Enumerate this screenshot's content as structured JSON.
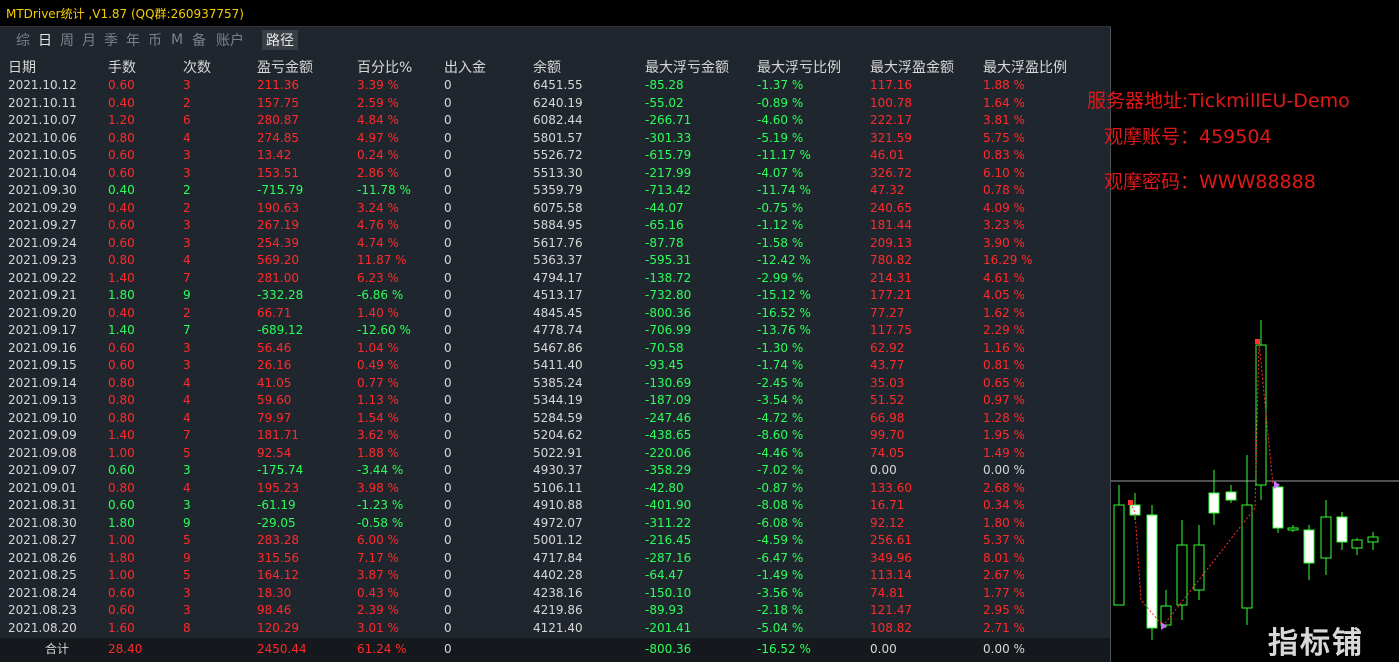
{
  "window": {
    "title": "MTDriver统计 ,V1.87 (QQ群:260937757)"
  },
  "tabs": [
    {
      "label": "综",
      "active": false
    },
    {
      "label": "日",
      "active": true
    },
    {
      "label": "周",
      "active": false
    },
    {
      "label": "月",
      "active": false
    },
    {
      "label": "季",
      "active": false
    },
    {
      "label": "年",
      "active": false
    },
    {
      "label": "币",
      "active": false
    },
    {
      "label": "M",
      "active": false
    },
    {
      "label": "备",
      "active": false
    },
    {
      "label": "账户",
      "active": false
    }
  ],
  "route_label": "路径",
  "columns": [
    "日期",
    "手数",
    "次数",
    "盈亏金额",
    "百分比%",
    "出入金",
    "余额",
    "最大浮亏金额",
    "最大浮亏比例",
    "最大浮盈金额",
    "最大浮盈比例"
  ],
  "rows": [
    {
      "date": "2021.10.12",
      "lots": "0.60",
      "count": "3",
      "pnl": "211.36",
      "pct": "3.39 %",
      "io": "0",
      "bal": "6451.55",
      "mfl": "-85.28",
      "mflp": "-1.37 %",
      "mfp": "117.16",
      "mfpp": "1.88 %",
      "sign": "pos"
    },
    {
      "date": "2021.10.11",
      "lots": "0.40",
      "count": "2",
      "pnl": "157.75",
      "pct": "2.59 %",
      "io": "0",
      "bal": "6240.19",
      "mfl": "-55.02",
      "mflp": "-0.89 %",
      "mfp": "100.78",
      "mfpp": "1.64 %",
      "sign": "pos"
    },
    {
      "date": "2021.10.07",
      "lots": "1.20",
      "count": "6",
      "pnl": "280.87",
      "pct": "4.84 %",
      "io": "0",
      "bal": "6082.44",
      "mfl": "-266.71",
      "mflp": "-4.60 %",
      "mfp": "222.17",
      "mfpp": "3.81 %",
      "sign": "pos"
    },
    {
      "date": "2021.10.06",
      "lots": "0.80",
      "count": "4",
      "pnl": "274.85",
      "pct": "4.97 %",
      "io": "0",
      "bal": "5801.57",
      "mfl": "-301.33",
      "mflp": "-5.19 %",
      "mfp": "321.59",
      "mfpp": "5.75 %",
      "sign": "pos"
    },
    {
      "date": "2021.10.05",
      "lots": "0.60",
      "count": "3",
      "pnl": "13.42",
      "pct": "0.24 %",
      "io": "0",
      "bal": "5526.72",
      "mfl": "-615.79",
      "mflp": "-11.17 %",
      "mfp": "46.01",
      "mfpp": "0.83 %",
      "sign": "pos"
    },
    {
      "date": "2021.10.04",
      "lots": "0.60",
      "count": "3",
      "pnl": "153.51",
      "pct": "2.86 %",
      "io": "0",
      "bal": "5513.30",
      "mfl": "-217.99",
      "mflp": "-4.07 %",
      "mfp": "326.72",
      "mfpp": "6.10 %",
      "sign": "pos"
    },
    {
      "date": "2021.09.30",
      "lots": "0.40",
      "count": "2",
      "pnl": "-715.79",
      "pct": "-11.78 %",
      "io": "0",
      "bal": "5359.79",
      "mfl": "-713.42",
      "mflp": "-11.74 %",
      "mfp": "47.32",
      "mfpp": "0.78 %",
      "sign": "neg"
    },
    {
      "date": "2021.09.29",
      "lots": "0.40",
      "count": "2",
      "pnl": "190.63",
      "pct": "3.24 %",
      "io": "0",
      "bal": "6075.58",
      "mfl": "-44.07",
      "mflp": "-0.75 %",
      "mfp": "240.65",
      "mfpp": "4.09 %",
      "sign": "pos"
    },
    {
      "date": "2021.09.27",
      "lots": "0.60",
      "count": "3",
      "pnl": "267.19",
      "pct": "4.76 %",
      "io": "0",
      "bal": "5884.95",
      "mfl": "-65.16",
      "mflp": "-1.12 %",
      "mfp": "181.44",
      "mfpp": "3.23 %",
      "sign": "pos"
    },
    {
      "date": "2021.09.24",
      "lots": "0.60",
      "count": "3",
      "pnl": "254.39",
      "pct": "4.74 %",
      "io": "0",
      "bal": "5617.76",
      "mfl": "-87.78",
      "mflp": "-1.58 %",
      "mfp": "209.13",
      "mfpp": "3.90 %",
      "sign": "pos"
    },
    {
      "date": "2021.09.23",
      "lots": "0.80",
      "count": "4",
      "pnl": "569.20",
      "pct": "11.87 %",
      "io": "0",
      "bal": "5363.37",
      "mfl": "-595.31",
      "mflp": "-12.42 %",
      "mfp": "780.82",
      "mfpp": "16.29 %",
      "sign": "pos"
    },
    {
      "date": "2021.09.22",
      "lots": "1.40",
      "count": "7",
      "pnl": "281.00",
      "pct": "6.23 %",
      "io": "0",
      "bal": "4794.17",
      "mfl": "-138.72",
      "mflp": "-2.99 %",
      "mfp": "214.31",
      "mfpp": "4.61 %",
      "sign": "pos"
    },
    {
      "date": "2021.09.21",
      "lots": "1.80",
      "count": "9",
      "pnl": "-332.28",
      "pct": "-6.86 %",
      "io": "0",
      "bal": "4513.17",
      "mfl": "-732.80",
      "mflp": "-15.12 %",
      "mfp": "177.21",
      "mfpp": "4.05 %",
      "sign": "neg"
    },
    {
      "date": "2021.09.20",
      "lots": "0.40",
      "count": "2",
      "pnl": "66.71",
      "pct": "1.40 %",
      "io": "0",
      "bal": "4845.45",
      "mfl": "-800.36",
      "mflp": "-16.52 %",
      "mfp": "77.27",
      "mfpp": "1.62 %",
      "sign": "pos"
    },
    {
      "date": "2021.09.17",
      "lots": "1.40",
      "count": "7",
      "pnl": "-689.12",
      "pct": "-12.60 %",
      "io": "0",
      "bal": "4778.74",
      "mfl": "-706.99",
      "mflp": "-13.76 %",
      "mfp": "117.75",
      "mfpp": "2.29 %",
      "sign": "neg"
    },
    {
      "date": "2021.09.16",
      "lots": "0.60",
      "count": "3",
      "pnl": "56.46",
      "pct": "1.04 %",
      "io": "0",
      "bal": "5467.86",
      "mfl": "-70.58",
      "mflp": "-1.30 %",
      "mfp": "62.92",
      "mfpp": "1.16 %",
      "sign": "pos"
    },
    {
      "date": "2021.09.15",
      "lots": "0.60",
      "count": "3",
      "pnl": "26.16",
      "pct": "0.49 %",
      "io": "0",
      "bal": "5411.40",
      "mfl": "-93.45",
      "mflp": "-1.74 %",
      "mfp": "43.77",
      "mfpp": "0.81 %",
      "sign": "pos"
    },
    {
      "date": "2021.09.14",
      "lots": "0.80",
      "count": "4",
      "pnl": "41.05",
      "pct": "0.77 %",
      "io": "0",
      "bal": "5385.24",
      "mfl": "-130.69",
      "mflp": "-2.45 %",
      "mfp": "35.03",
      "mfpp": "0.65 %",
      "sign": "pos"
    },
    {
      "date": "2021.09.13",
      "lots": "0.80",
      "count": "4",
      "pnl": "59.60",
      "pct": "1.13 %",
      "io": "0",
      "bal": "5344.19",
      "mfl": "-187.09",
      "mflp": "-3.54 %",
      "mfp": "51.52",
      "mfpp": "0.97 %",
      "sign": "pos"
    },
    {
      "date": "2021.09.10",
      "lots": "0.80",
      "count": "4",
      "pnl": "79.97",
      "pct": "1.54 %",
      "io": "0",
      "bal": "5284.59",
      "mfl": "-247.46",
      "mflp": "-4.72 %",
      "mfp": "66.98",
      "mfpp": "1.28 %",
      "sign": "pos"
    },
    {
      "date": "2021.09.09",
      "lots": "1.40",
      "count": "7",
      "pnl": "181.71",
      "pct": "3.62 %",
      "io": "0",
      "bal": "5204.62",
      "mfl": "-438.65",
      "mflp": "-8.60 %",
      "mfp": "99.70",
      "mfpp": "1.95 %",
      "sign": "pos"
    },
    {
      "date": "2021.09.08",
      "lots": "1.00",
      "count": "5",
      "pnl": "92.54",
      "pct": "1.88 %",
      "io": "0",
      "bal": "5022.91",
      "mfl": "-220.06",
      "mflp": "-4.46 %",
      "mfp": "74.05",
      "mfpp": "1.49 %",
      "sign": "pos"
    },
    {
      "date": "2021.09.07",
      "lots": "0.60",
      "count": "3",
      "pnl": "-175.74",
      "pct": "-3.44 %",
      "io": "0",
      "bal": "4930.37",
      "mfl": "-358.29",
      "mflp": "-7.02 %",
      "mfp": "0.00",
      "mfpp": "0.00 %",
      "sign": "neg"
    },
    {
      "date": "2021.09.01",
      "lots": "0.80",
      "count": "4",
      "pnl": "195.23",
      "pct": "3.98 %",
      "io": "0",
      "bal": "5106.11",
      "mfl": "-42.80",
      "mflp": "-0.87 %",
      "mfp": "133.60",
      "mfpp": "2.68 %",
      "sign": "pos"
    },
    {
      "date": "2021.08.31",
      "lots": "0.60",
      "count": "3",
      "pnl": "-61.19",
      "pct": "-1.23 %",
      "io": "0",
      "bal": "4910.88",
      "mfl": "-401.90",
      "mflp": "-8.08 %",
      "mfp": "16.71",
      "mfpp": "0.34 %",
      "sign": "neg"
    },
    {
      "date": "2021.08.30",
      "lots": "1.80",
      "count": "9",
      "pnl": "-29.05",
      "pct": "-0.58 %",
      "io": "0",
      "bal": "4972.07",
      "mfl": "-311.22",
      "mflp": "-6.08 %",
      "mfp": "92.12",
      "mfpp": "1.80 %",
      "sign": "neg"
    },
    {
      "date": "2021.08.27",
      "lots": "1.00",
      "count": "5",
      "pnl": "283.28",
      "pct": "6.00 %",
      "io": "0",
      "bal": "5001.12",
      "mfl": "-216.45",
      "mflp": "-4.59 %",
      "mfp": "256.61",
      "mfpp": "5.37 %",
      "sign": "pos"
    },
    {
      "date": "2021.08.26",
      "lots": "1.80",
      "count": "9",
      "pnl": "315.56",
      "pct": "7.17 %",
      "io": "0",
      "bal": "4717.84",
      "mfl": "-287.16",
      "mflp": "-6.47 %",
      "mfp": "349.96",
      "mfpp": "8.01 %",
      "sign": "pos"
    },
    {
      "date": "2021.08.25",
      "lots": "1.00",
      "count": "5",
      "pnl": "164.12",
      "pct": "3.87 %",
      "io": "0",
      "bal": "4402.28",
      "mfl": "-64.47",
      "mflp": "-1.49 %",
      "mfp": "113.14",
      "mfpp": "2.67 %",
      "sign": "pos"
    },
    {
      "date": "2021.08.24",
      "lots": "0.60",
      "count": "3",
      "pnl": "18.30",
      "pct": "0.43 %",
      "io": "0",
      "bal": "4238.16",
      "mfl": "-150.10",
      "mflp": "-3.56 %",
      "mfp": "74.81",
      "mfpp": "1.77 %",
      "sign": "pos"
    },
    {
      "date": "2021.08.23",
      "lots": "0.60",
      "count": "3",
      "pnl": "98.46",
      "pct": "2.39 %",
      "io": "0",
      "bal": "4219.86",
      "mfl": "-89.93",
      "mflp": "-2.18 %",
      "mfp": "121.47",
      "mfpp": "2.95 %",
      "sign": "pos"
    },
    {
      "date": "2021.08.20",
      "lots": "1.60",
      "count": "8",
      "pnl": "120.29",
      "pct": "3.01 %",
      "io": "0",
      "bal": "4121.40",
      "mfl": "-201.41",
      "mflp": "-5.04 %",
      "mfp": "108.82",
      "mfpp": "2.71 %",
      "sign": "pos"
    }
  ],
  "total": {
    "label": "合计",
    "lots": "28.40",
    "pnl": "2450.44",
    "pct": "61.24 %",
    "io": "0",
    "mfl": "-800.36",
    "mflp": "-16.52 %",
    "mfp": "0.00",
    "mfpp": "0.00 %"
  },
  "info": {
    "server": "服务器地址:TickmillEU-Demo",
    "account": "观摩账号：459504",
    "password": "观摩密码：WWW88888"
  },
  "watermark": "指标铺",
  "colors": {
    "positive": "#ff2a2a",
    "negative": "#2aff5a",
    "title": "#f5d000",
    "info": "#e01818"
  }
}
